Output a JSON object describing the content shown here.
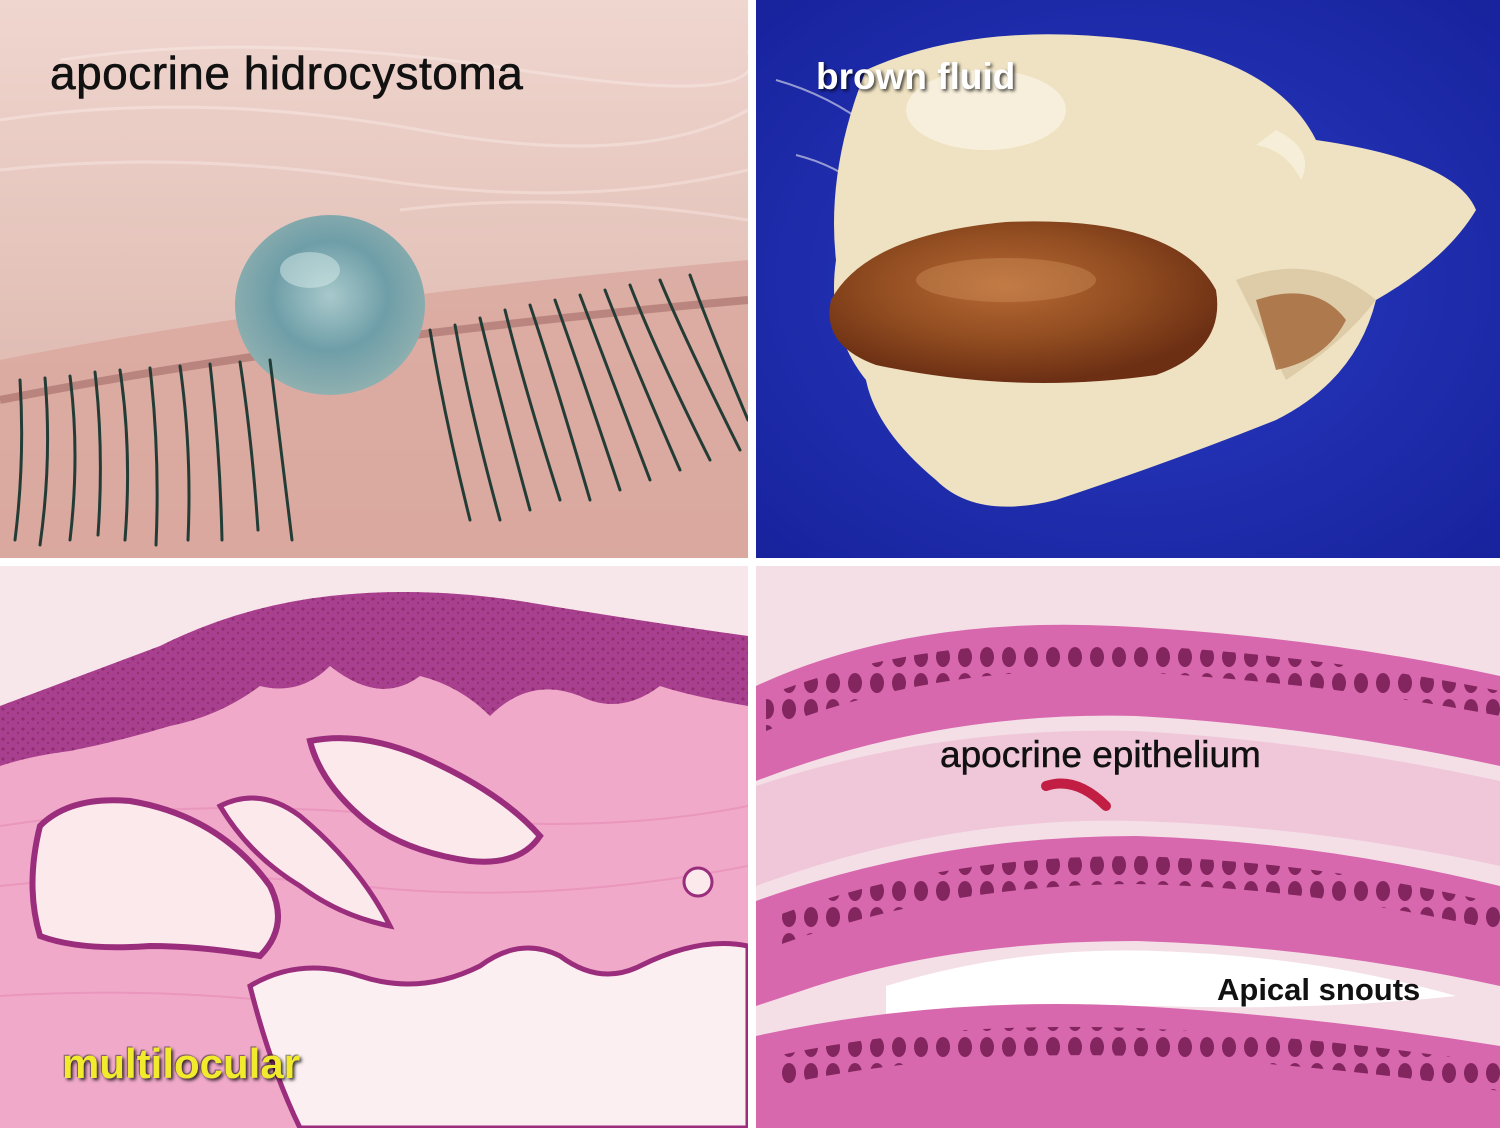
{
  "panels": {
    "top_left": {
      "label": "apocrine hidrocystoma"
    },
    "top_right": {
      "label": "brown fluid"
    },
    "bottom_left": {
      "label": "multilocular"
    },
    "bottom_right": {
      "label_1": "apocrine epithelium",
      "label_2": "Apical snouts"
    }
  },
  "colors": {
    "skin": "#e6c7bf",
    "cyst_blue": "#6f9ea8",
    "lash": "#233d36",
    "backdrop_blue": "#1d2db3",
    "tissue_cream": "#efe2c2",
    "fluid_brown": "#8e4a1f",
    "stain_pink": "#f0a9c9",
    "epidermis_purple": "#a8408f",
    "nuclei": "#7a1e55",
    "label_yellow": "#f2ea2c"
  }
}
